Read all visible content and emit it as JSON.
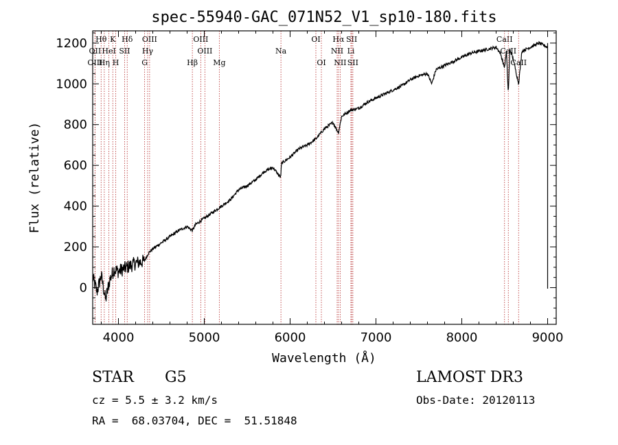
{
  "chart_data": {
    "type": "line",
    "title": "spec-55940-GAC_071N52_V1_sp10-180.fits",
    "xlabel": "Wavelength (Å)",
    "ylabel": "Flux (relative)",
    "xlim": [
      3700,
      9100
    ],
    "ylim": [
      -180,
      1260
    ],
    "xticks": [
      4000,
      5000,
      6000,
      7000,
      8000,
      9000
    ],
    "yticks": [
      0,
      200,
      400,
      600,
      800,
      1000,
      1200
    ],
    "series": [
      {
        "name": "flux",
        "x": [
          3700,
          3750,
          3800,
          3850,
          3900,
          3950,
          4000,
          4100,
          4200,
          4300,
          4350,
          4400,
          4500,
          4600,
          4700,
          4800,
          4861,
          4900,
          5000,
          5100,
          5200,
          5300,
          5400,
          5500,
          5600,
          5700,
          5800,
          5890,
          5900,
          6000,
          6100,
          6200,
          6300,
          6400,
          6500,
          6563,
          6600,
          6700,
          6800,
          6900,
          7000,
          7100,
          7200,
          7300,
          7400,
          7500,
          7600,
          7650,
          7700,
          7800,
          7900,
          8000,
          8100,
          8200,
          8300,
          8400,
          8450,
          8498,
          8520,
          8542,
          8560,
          8600,
          8662,
          8700,
          8800,
          8900,
          8950,
          9000
        ],
        "y": [
          50,
          -20,
          60,
          -60,
          40,
          90,
          80,
          100,
          120,
          130,
          170,
          190,
          220,
          250,
          280,
          300,
          280,
          310,
          340,
          370,
          400,
          430,
          480,
          500,
          530,
          570,
          590,
          540,
          610,
          640,
          680,
          700,
          730,
          780,
          810,
          760,
          840,
          870,
          880,
          910,
          930,
          950,
          970,
          990,
          1020,
          1040,
          1050,
          1000,
          1070,
          1090,
          1110,
          1130,
          1150,
          1160,
          1170,
          1180,
          1150,
          1080,
          1160,
          950,
          1170,
          1120,
          1000,
          1160,
          1180,
          1200,
          1190,
          1180
        ]
      }
    ],
    "lines": [
      {
        "name": "Hθ",
        "x": 3798,
        "row": 0
      },
      {
        "name": "K",
        "x": 3934,
        "row": 0
      },
      {
        "name": "Hδ",
        "x": 4102,
        "row": 0
      },
      {
        "name": "OIII",
        "x": 4363,
        "row": 0
      },
      {
        "name": "OIII",
        "x": 4959,
        "row": 0
      },
      {
        "name": "OI",
        "x": 6300,
        "row": 0
      },
      {
        "name": "Hα",
        "x": 6563,
        "row": 0
      },
      {
        "name": "SII",
        "x": 6717,
        "row": 0
      },
      {
        "name": "CaII",
        "x": 8498,
        "row": 0
      },
      {
        "name": "OII",
        "x": 3727,
        "row": 1
      },
      {
        "name": "HeI",
        "x": 3889,
        "row": 1
      },
      {
        "name": "SII",
        "x": 4072,
        "row": 1
      },
      {
        "name": "Hγ",
        "x": 4340,
        "row": 1
      },
      {
        "name": "OIII",
        "x": 5007,
        "row": 1
      },
      {
        "name": "Na",
        "x": 5893,
        "row": 1
      },
      {
        "name": "NII",
        "x": 6548,
        "row": 1
      },
      {
        "name": "Li",
        "x": 6708,
        "row": 1
      },
      {
        "name": "CaII",
        "x": 8542,
        "row": 1
      },
      {
        "name": "OIII",
        "x": 3727,
        "row": 2
      },
      {
        "name": "Hη",
        "x": 3835,
        "row": 2
      },
      {
        "name": "H",
        "x": 3968,
        "row": 2
      },
      {
        "name": "G",
        "x": 4305,
        "row": 2
      },
      {
        "name": "Hβ",
        "x": 4861,
        "row": 2
      },
      {
        "name": "Mg",
        "x": 5175,
        "row": 2
      },
      {
        "name": "OI",
        "x": 6364,
        "row": 2
      },
      {
        "name": "NII",
        "x": 6583,
        "row": 2
      },
      {
        "name": "SII",
        "x": 6731,
        "row": 2
      },
      {
        "name": "CaII",
        "x": 8662,
        "row": 2
      }
    ],
    "line_color": "#b22222"
  },
  "footer": {
    "class": "STAR",
    "subclass": "G5",
    "survey": "LAMOST DR3",
    "cz": "cz = 5.5 ± 3.2 km/s",
    "obs_date": "Obs-Date: 20120113",
    "coords": "RA =  68.03704, DEC =  51.51848"
  }
}
